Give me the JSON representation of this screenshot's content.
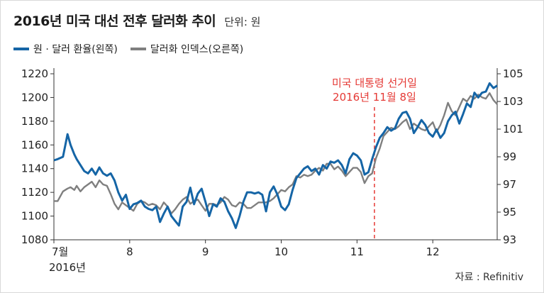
{
  "title": "2016년 미국 대선 전후 달러화 추이",
  "unit_label": "단위: 원",
  "source": "자료 : Refinitiv",
  "year_label": "2016년",
  "colors": {
    "won": "#1565a6",
    "dxy": "#7f7f7f",
    "event": "#e53935",
    "axis": "#333333"
  },
  "legend": {
    "won": "원 · 달러 환율(왼쪽)",
    "dxy": "달러화 인덱스(오른쪽)"
  },
  "event": {
    "line1": "미국 대통령 선거일",
    "line2": "2016년 11월 8일",
    "x": 4.23
  },
  "chart_data": {
    "type": "line",
    "title": "2016년 미국 대선 전후 달러화 추이",
    "x_tick_labels": [
      "7월",
      "8",
      "9",
      "10",
      "11",
      "12"
    ],
    "x_range": [
      0,
      5.85
    ],
    "y_left": {
      "label": "원",
      "range": [
        1080,
        1220
      ],
      "ticks": [
        1080,
        1100,
        1120,
        1140,
        1160,
        1180,
        1200,
        1220
      ]
    },
    "y_right": {
      "range": [
        93,
        105
      ],
      "ticks": [
        93,
        95,
        97,
        99,
        101,
        103,
        105
      ]
    },
    "grid": false,
    "legend_position": "top-left",
    "series": [
      {
        "name": "원 · 달러 환율(왼쪽)",
        "axis": "left",
        "x": [
          0.0,
          0.05,
          0.12,
          0.18,
          0.22,
          0.27,
          0.3,
          0.35,
          0.4,
          0.45,
          0.5,
          0.55,
          0.6,
          0.65,
          0.7,
          0.75,
          0.8,
          0.85,
          0.9,
          0.95,
          1.0,
          1.05,
          1.1,
          1.15,
          1.2,
          1.25,
          1.3,
          1.35,
          1.4,
          1.45,
          1.5,
          1.55,
          1.6,
          1.65,
          1.7,
          1.75,
          1.8,
          1.85,
          1.9,
          1.95,
          2.0,
          2.05,
          2.1,
          2.15,
          2.2,
          2.25,
          2.3,
          2.35,
          2.4,
          2.45,
          2.5,
          2.55,
          2.6,
          2.65,
          2.7,
          2.75,
          2.8,
          2.85,
          2.9,
          2.95,
          3.0,
          3.05,
          3.1,
          3.15,
          3.2,
          3.25,
          3.3,
          3.35,
          3.4,
          3.45,
          3.5,
          3.55,
          3.6,
          3.65,
          3.7,
          3.75,
          3.8,
          3.85,
          3.9,
          3.95,
          4.0,
          4.05,
          4.1,
          4.15,
          4.2,
          4.25,
          4.3,
          4.35,
          4.4,
          4.45,
          4.5,
          4.55,
          4.6,
          4.65,
          4.7,
          4.75,
          4.8,
          4.85,
          4.9,
          4.95,
          5.0,
          5.05,
          5.1,
          5.15,
          5.2,
          5.25,
          5.3,
          5.35,
          5.4,
          5.45,
          5.5,
          5.55,
          5.6,
          5.65,
          5.7,
          5.75,
          5.8,
          5.85
        ],
        "values": [
          1147,
          1148,
          1150,
          1169,
          1160,
          1152,
          1148,
          1143,
          1138,
          1136,
          1140,
          1135,
          1141,
          1136,
          1134,
          1136,
          1130,
          1120,
          1113,
          1118,
          1106,
          1110,
          1111,
          1113,
          1108,
          1106,
          1105,
          1108,
          1095,
          1102,
          1108,
          1100,
          1096,
          1092,
          1108,
          1112,
          1124,
          1110,
          1119,
          1123,
          1112,
          1100,
          1110,
          1108,
          1115,
          1112,
          1104,
          1098,
          1090,
          1100,
          1112,
          1120,
          1120,
          1119,
          1120,
          1118,
          1104,
          1120,
          1125,
          1118,
          1108,
          1105,
          1110,
          1122,
          1132,
          1136,
          1140,
          1142,
          1138,
          1140,
          1135,
          1143,
          1140,
          1146,
          1145,
          1147,
          1143,
          1136,
          1148,
          1153,
          1151,
          1147,
          1135,
          1137,
          1148,
          1158,
          1166,
          1170,
          1175,
          1172,
          1174,
          1182,
          1187,
          1188,
          1182,
          1170,
          1175,
          1181,
          1177,
          1170,
          1167,
          1173,
          1166,
          1170,
          1180,
          1185,
          1188,
          1178,
          1186,
          1195,
          1192,
          1204,
          1200,
          1204,
          1205,
          1212,
          1208,
          1210
        ]
      },
      {
        "name": "달러화 인덱스(오른쪽)",
        "axis": "right",
        "x": [
          0.0,
          0.05,
          0.12,
          0.18,
          0.22,
          0.27,
          0.3,
          0.35,
          0.4,
          0.45,
          0.5,
          0.55,
          0.6,
          0.65,
          0.7,
          0.75,
          0.8,
          0.85,
          0.9,
          0.95,
          1.0,
          1.05,
          1.1,
          1.15,
          1.2,
          1.25,
          1.3,
          1.35,
          1.4,
          1.45,
          1.5,
          1.55,
          1.6,
          1.65,
          1.7,
          1.75,
          1.8,
          1.85,
          1.9,
          1.95,
          2.0,
          2.05,
          2.1,
          2.15,
          2.2,
          2.25,
          2.3,
          2.35,
          2.4,
          2.45,
          2.5,
          2.55,
          2.6,
          2.65,
          2.7,
          2.75,
          2.8,
          2.85,
          2.9,
          2.95,
          3.0,
          3.05,
          3.1,
          3.15,
          3.2,
          3.25,
          3.3,
          3.35,
          3.4,
          3.45,
          3.5,
          3.55,
          3.6,
          3.65,
          3.7,
          3.75,
          3.8,
          3.85,
          3.9,
          3.95,
          4.0,
          4.05,
          4.1,
          4.15,
          4.2,
          4.25,
          4.3,
          4.35,
          4.4,
          4.45,
          4.5,
          4.55,
          4.6,
          4.65,
          4.7,
          4.75,
          4.8,
          4.85,
          4.9,
          4.95,
          5.0,
          5.05,
          5.1,
          5.15,
          5.2,
          5.25,
          5.3,
          5.35,
          5.4,
          5.45,
          5.5,
          5.55,
          5.6,
          5.65,
          5.7,
          5.75,
          5.8,
          5.85
        ],
        "values": [
          95.8,
          95.8,
          96.5,
          96.7,
          96.8,
          96.6,
          96.9,
          96.5,
          96.8,
          97.0,
          97.2,
          96.8,
          97.3,
          97.0,
          96.9,
          96.3,
          95.6,
          95.2,
          95.7,
          95.5,
          95.3,
          95.1,
          95.6,
          95.8,
          95.7,
          95.5,
          95.6,
          95.5,
          95.2,
          95.7,
          95.4,
          94.9,
          95.2,
          95.6,
          95.9,
          96.1,
          95.6,
          95.8,
          95.9,
          95.5,
          95.1,
          95.6,
          95.6,
          95.5,
          95.7,
          96.1,
          95.9,
          95.5,
          95.4,
          95.7,
          95.6,
          95.3,
          95.3,
          95.5,
          95.7,
          95.7,
          95.7,
          95.8,
          96.0,
          96.3,
          96.6,
          96.5,
          96.8,
          97.0,
          97.6,
          97.5,
          97.7,
          97.6,
          97.7,
          98.0,
          98.2,
          98.0,
          98.5,
          98.5,
          98.1,
          98.3,
          98.0,
          97.6,
          97.9,
          98.2,
          98.2,
          97.9,
          97.1,
          97.6,
          97.8,
          98.9,
          99.6,
          100.5,
          100.8,
          101.1,
          101.0,
          101.2,
          101.5,
          101.7,
          101.0,
          101.4,
          101.2,
          101.0,
          100.9,
          101.2,
          101.5,
          100.8,
          101.3,
          102.0,
          102.9,
          102.3,
          102.0,
          102.6,
          103.2,
          103.0,
          103.4,
          103.2,
          103.5,
          103.3,
          103.2,
          103.6,
          103.1,
          102.8
        ]
      }
    ]
  }
}
